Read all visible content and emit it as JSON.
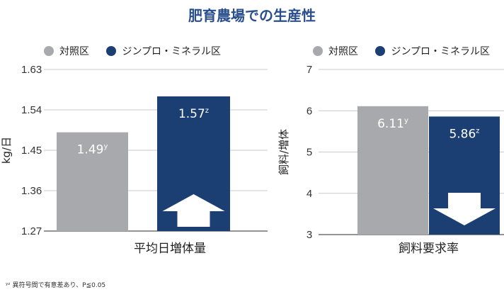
{
  "title": "肥育農場での生産性",
  "colors": {
    "control": "#a7a9ac",
    "zinpro": "#1b3f73",
    "accent": "#2a4f8c"
  },
  "legend": {
    "control": "対照区",
    "zinpro": "ジンプロ・ミネラル区"
  },
  "footnote": "ʸᶻ 異符号間で有意差あり、P≦0.05",
  "chart_data": [
    {
      "type": "bar",
      "categories": [
        "対照区",
        "ジンプロ・ミネラル区"
      ],
      "values": [
        1.49,
        1.57
      ],
      "value_labels": [
        "1.49",
        "1.57"
      ],
      "superscripts": [
        "y",
        "z"
      ],
      "xlabel": "平均日増体量",
      "ylabel": "kg/日",
      "ylim": [
        1.27,
        1.63
      ],
      "yticks": [
        "1.27",
        "1.36",
        "1.45",
        "1.54",
        "1.63"
      ],
      "grid": true,
      "arrow": "up"
    },
    {
      "type": "bar",
      "categories": [
        "対照区",
        "ジンプロ・ミネラル区"
      ],
      "values": [
        6.11,
        5.86
      ],
      "value_labels": [
        "6.11",
        "5.86"
      ],
      "superscripts": [
        "y",
        "z"
      ],
      "xlabel": "飼料要求率",
      "ylabel": "飼料/増体",
      "ylim": [
        3,
        7
      ],
      "yticks": [
        "3",
        "4",
        "5",
        "6",
        "7"
      ],
      "grid": true,
      "arrow": "down"
    }
  ]
}
